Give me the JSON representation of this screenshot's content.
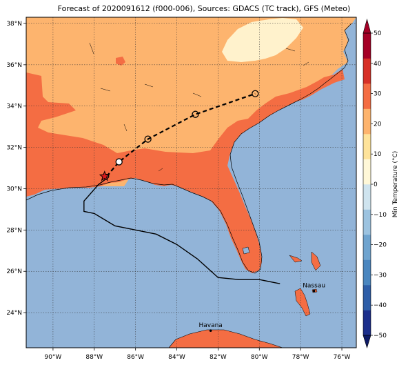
{
  "title": "Forecast of 2020091612 (f000-006), Sources: GDACS (TC track), GFS (Meteo)",
  "map": {
    "lon_range": [
      -91.3,
      -75.3
    ],
    "lat_range": [
      22.3,
      38.3
    ],
    "lon_ticks": [
      -90,
      -88,
      -86,
      -84,
      -82,
      -80,
      -78,
      -76
    ],
    "lon_tick_labels": [
      "90°W",
      "88°W",
      "86°W",
      "84°W",
      "82°W",
      "80°W",
      "78°W",
      "76°W"
    ],
    "lat_ticks": [
      24,
      26,
      28,
      30,
      32,
      34,
      36,
      38
    ],
    "lat_tick_labels": [
      "24°N",
      "26°N",
      "28°N",
      "30°N",
      "32°N",
      "34°N",
      "36°N",
      "38°N"
    ],
    "grid": true,
    "ocean_color": "#92b4d8",
    "coastline_color": "#000000"
  },
  "temperature_classes": [
    {
      "range": "10 to 20 °C",
      "color": "#fdb46e"
    },
    {
      "range": "20 to 30 °C",
      "color": "#f46d43"
    },
    {
      "range": "0 to 10 °C",
      "color": "#fff2cc"
    }
  ],
  "cities": [
    {
      "name": "Havana",
      "lon": -82.36,
      "lat": 23.13
    },
    {
      "name": "Nassau",
      "lon": -77.35,
      "lat": 25.05
    }
  ],
  "storm_track": {
    "observed_path": [
      [
        -79.0,
        25.4
      ],
      [
        -80.0,
        25.6
      ],
      [
        -81.0,
        25.6
      ],
      [
        -82.0,
        25.7
      ],
      [
        -83.0,
        26.6
      ],
      [
        -84.0,
        27.3
      ],
      [
        -85.0,
        27.8
      ],
      [
        -86.0,
        28.0
      ],
      [
        -87.0,
        28.2
      ],
      [
        -87.5,
        28.5
      ],
      [
        -88.0,
        28.8
      ],
      [
        -88.5,
        28.9
      ],
      [
        -88.5,
        29.4
      ],
      [
        -87.8,
        30.2
      ],
      [
        -87.4,
        30.5
      ]
    ],
    "landfall": {
      "lon": -87.5,
      "lat": 30.6
    },
    "forecast_points": [
      {
        "lon": -87.4,
        "lat": 30.6
      },
      {
        "lon": -86.8,
        "lat": 31.3
      },
      {
        "lon": -85.4,
        "lat": 32.4
      },
      {
        "lon": -83.1,
        "lat": 33.6
      },
      {
        "lon": -80.2,
        "lat": 34.6
      }
    ]
  },
  "colorbar": {
    "label": "Min Temperature (°C)",
    "min": -50,
    "max": 50,
    "ticks": [
      50,
      40,
      30,
      20,
      10,
      0,
      -10,
      -20,
      -30,
      -40,
      -50
    ],
    "tick_labels": [
      "50",
      "40",
      "30",
      "20",
      "10",
      "0",
      "−10",
      "−20",
      "−30",
      "−40",
      "−50"
    ],
    "colors": [
      "#1c2f8c",
      "#2e5ea8",
      "#4a86bf",
      "#6fa4cf",
      "#9cc3e0",
      "#cfe4ef",
      "#fff8d8",
      "#fee39a",
      "#fdb46e",
      "#f46d43",
      "#d73027",
      "#a50026"
    ]
  }
}
